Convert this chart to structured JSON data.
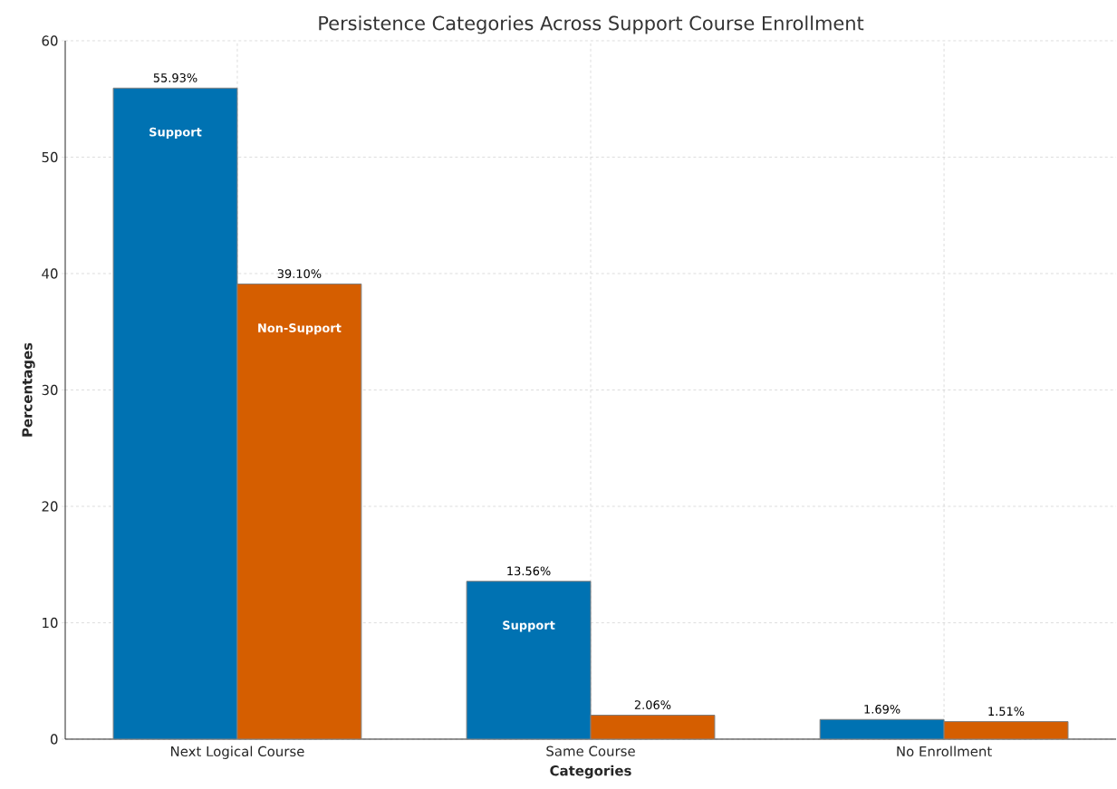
{
  "chart_data": {
    "type": "bar",
    "title": "Persistence Categories Across Support Course Enrollment",
    "xlabel": "Categories",
    "ylabel": "Percentages",
    "categories": [
      "Next Logical Course",
      "Same Course",
      "No Enrollment"
    ],
    "series": [
      {
        "name": "Support",
        "color": "#0072b2",
        "values": [
          55.93,
          13.56,
          1.69
        ],
        "value_labels": [
          "55.93%",
          "13.56%",
          "1.69%"
        ]
      },
      {
        "name": "Non-Support",
        "color": "#d55e00",
        "values": [
          39.1,
          2.06,
          1.51
        ],
        "value_labels": [
          "39.10%",
          "2.06%",
          "1.51%"
        ]
      }
    ],
    "annotations": [
      "Support"
    ],
    "ylim": [
      0,
      60
    ],
    "yticks": [
      0,
      10,
      20,
      30,
      40,
      50,
      60
    ],
    "grid": true
  }
}
